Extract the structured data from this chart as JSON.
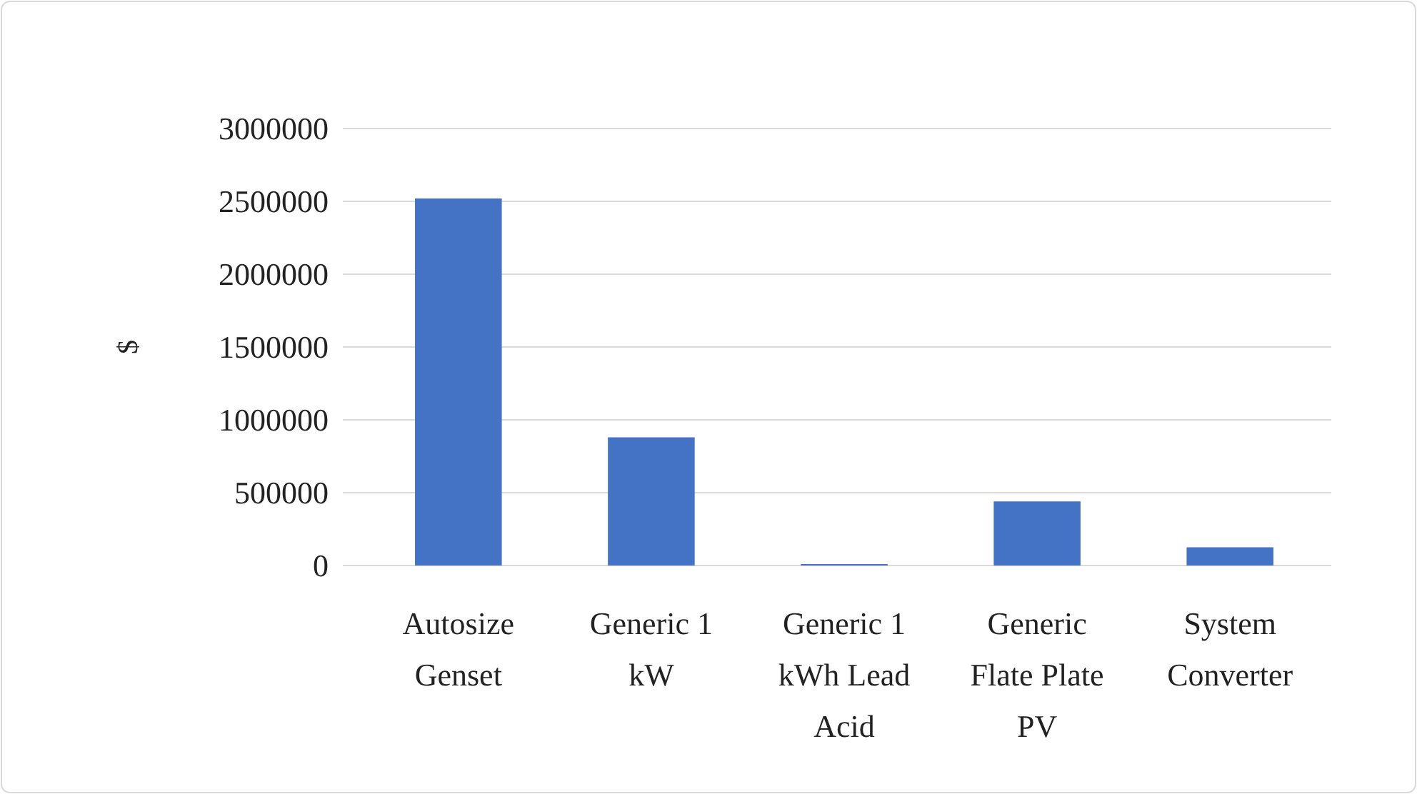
{
  "chart_data": {
    "type": "bar",
    "ylabel": "$",
    "categories": [
      "Autosize Genset",
      "Generic 1 kW",
      "Generic 1 kWh Lead Acid",
      "Generic Flate Plate PV",
      "System Converter"
    ],
    "values": [
      2520000,
      880000,
      10000,
      440000,
      125000
    ],
    "color": "#4472c4",
    "ylim": [
      0,
      3000000
    ],
    "yticks": [
      0,
      500000,
      1000000,
      1500000,
      2000000,
      2500000,
      3000000
    ],
    "grid": "y"
  }
}
